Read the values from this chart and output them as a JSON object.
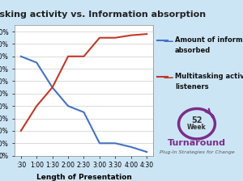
{
  "title": "Multitasking activity vs. Information absorption",
  "xlabel": "Length of Presentation",
  "background_color": "#cce5f5",
  "plot_bg_color": "#ffffff",
  "x_labels": [
    ":30",
    "1:00",
    "1:30",
    "2:00",
    "2:30",
    "3:00",
    "3:30",
    "4:00",
    "4:30"
  ],
  "x_values": [
    0.5,
    1.0,
    1.5,
    2.0,
    2.5,
    3.0,
    3.5,
    4.0,
    4.5
  ],
  "blue_line": [
    80,
    75,
    55,
    40,
    35,
    10,
    10,
    7,
    3
  ],
  "red_line": [
    20,
    40,
    55,
    80,
    80,
    95,
    95,
    97,
    98
  ],
  "blue_label_line1": "Amount of information",
  "blue_label_line2": "absorbed",
  "red_label_line1": "Multitasking activity by",
  "red_label_line2": "listeners",
  "blue_color": "#4472c4",
  "red_color": "#c0392b",
  "ylim": [
    0,
    105
  ],
  "yticks": [
    0,
    10,
    20,
    30,
    40,
    50,
    60,
    70,
    80,
    90,
    100
  ],
  "title_fontsize": 8,
  "axis_fontsize": 6.5,
  "tick_fontsize": 5.5,
  "legend_fontsize": 6,
  "turnaround_text": "Turnaround",
  "turnaround_sub": "Plug-In Strategies for Change",
  "week_text": "52\nWeek"
}
